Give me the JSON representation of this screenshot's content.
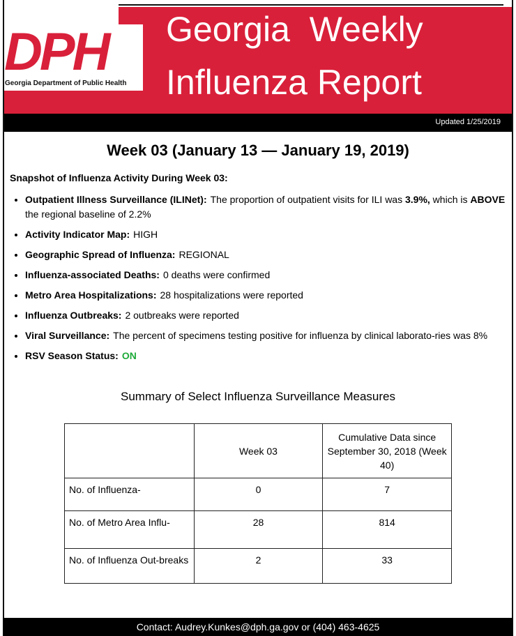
{
  "header": {
    "logo_text": "DPH",
    "logo_subtitle": "Georgia Department of Public Health",
    "title_lines": [
      "Georgia  Weekly",
      "Influenza Report"
    ]
  },
  "updated": "Updated 1/25/2019",
  "week_heading": "Week 03 (January 13 — January 19, 2019)",
  "snapshot_heading": "Snapshot of Influenza Activity During Week 03:",
  "bullets": [
    {
      "label": "Outpatient Illness Surveillance (ILINet):",
      "segments": [
        {
          "text": "The proportion of outpatient visits for ILI was "
        },
        {
          "text": "3.9%,",
          "bold": true
        },
        {
          "text": " which is "
        },
        {
          "text": "ABOVE",
          "bold": true
        },
        {
          "text": " the regional baseline of 2.2%"
        }
      ]
    },
    {
      "label": "Activity Indicator Map:",
      "segments": [
        {
          "text": "HIGH"
        }
      ]
    },
    {
      "label": "Geographic Spread of Influenza:",
      "segments": [
        {
          "text": "REGIONAL"
        }
      ]
    },
    {
      "label": "Influenza-associated Deaths:",
      "segments": [
        {
          "text": "0 deaths were confirmed"
        }
      ]
    },
    {
      "label": "Metro Area Hospitalizations:",
      "segments": [
        {
          "text": "28 hospitalizations were reported"
        }
      ]
    },
    {
      "label": "Influenza Outbreaks:",
      "segments": [
        {
          "text": "2 outbreaks were reported"
        }
      ]
    },
    {
      "label": "Viral Surveillance:",
      "segments": [
        {
          "text": "The percent of specimens testing positive for influenza by clinical laborato-ries was  8%"
        }
      ]
    },
    {
      "label": "RSV Season Status:",
      "segments": [
        {
          "text": "ON",
          "bold": true,
          "color": "#1faa3a"
        }
      ]
    }
  ],
  "table": {
    "title": "Summary of Select Influenza Surveillance Measures",
    "column_headers": [
      "Week 03",
      "Cumulative Data since September 30, 2018 (Week 40)"
    ],
    "rows": [
      {
        "label": "No. of Influenza-",
        "values": [
          "0",
          "7"
        ]
      },
      {
        "label": "No. of Metro Area Influ-",
        "values": [
          "28",
          "814"
        ]
      },
      {
        "label": "No. of Influenza Out-breaks",
        "values": [
          "2",
          "33"
        ]
      }
    ]
  },
  "footer": "Contact:  Audrey.Kunkes@dph.ga.gov or (404) 463-4625"
}
